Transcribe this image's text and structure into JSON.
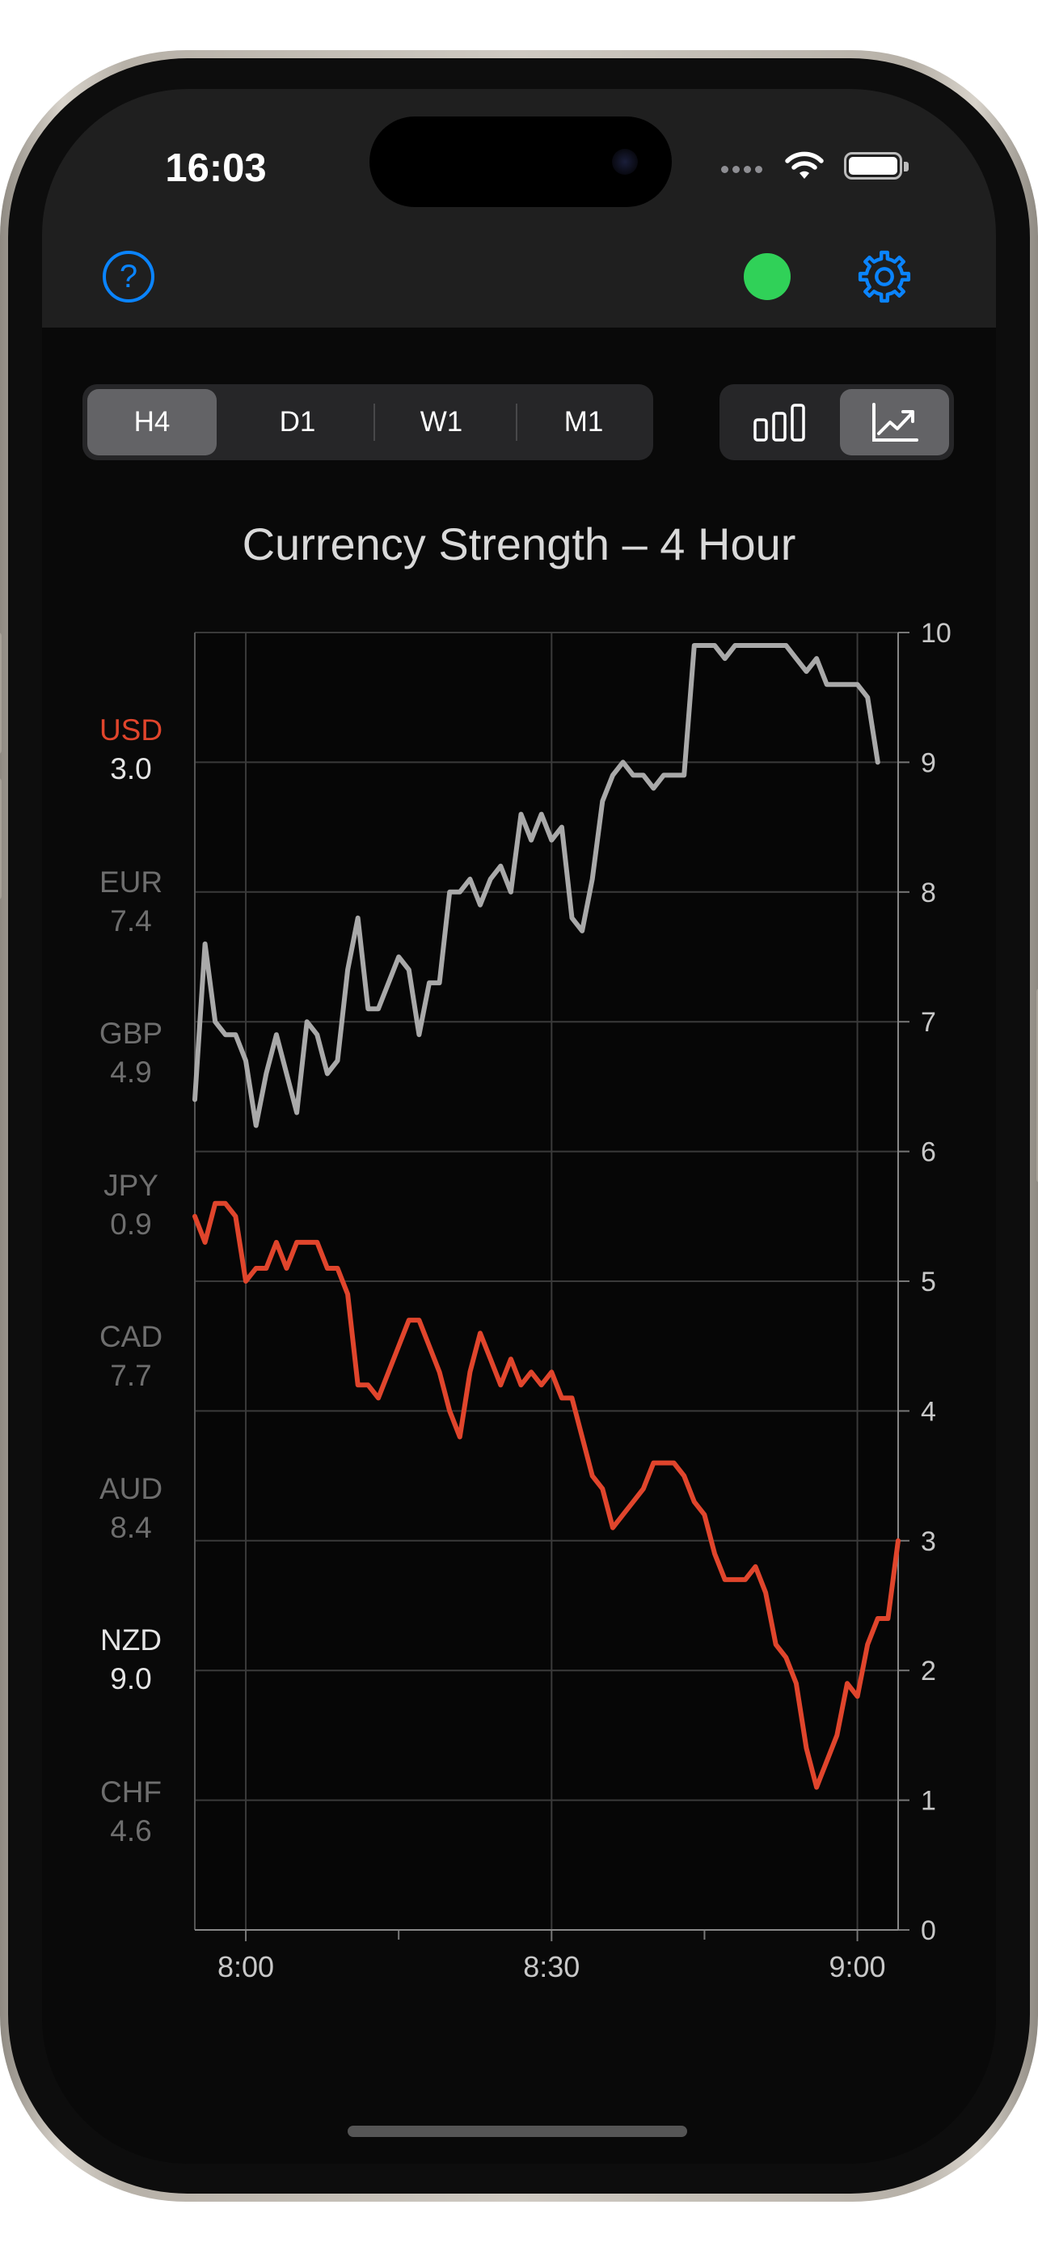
{
  "status_bar": {
    "time": "16:03"
  },
  "header": {
    "help_label": "?"
  },
  "timeframes": {
    "options": [
      "H4",
      "D1",
      "W1",
      "M1"
    ],
    "selected": "H4"
  },
  "view_modes": {
    "options": [
      "bar-chart-icon",
      "line-chart-icon"
    ],
    "selected": "line-chart-icon"
  },
  "colors": {
    "accent": "#0a84ff",
    "connected": "#30d158",
    "highlight": "#e0452c",
    "primary_series": "#a9a9a9"
  },
  "currencies": [
    {
      "code": "USD",
      "value": "3.0",
      "state": "highlight"
    },
    {
      "code": "EUR",
      "value": "7.4",
      "state": "dim"
    },
    {
      "code": "GBP",
      "value": "4.9",
      "state": "dim"
    },
    {
      "code": "JPY",
      "value": "0.9",
      "state": "dim"
    },
    {
      "code": "CAD",
      "value": "7.7",
      "state": "dim"
    },
    {
      "code": "AUD",
      "value": "8.4",
      "state": "dim"
    },
    {
      "code": "NZD",
      "value": "9.0",
      "state": "selected"
    },
    {
      "code": "CHF",
      "value": "4.6",
      "state": "dim"
    }
  ],
  "chart_data": {
    "type": "line",
    "title": "Currency Strength – 4 Hour",
    "y_range": [
      0,
      10
    ],
    "y_ticks": [
      "0",
      "1",
      "2",
      "3",
      "4",
      "5",
      "6",
      "7",
      "8",
      "9",
      "10"
    ],
    "x_ticks": [
      "8:00",
      "8:30",
      "9:00"
    ],
    "x_range_minutes": [
      -5,
      64
    ],
    "grid": true,
    "series": [
      {
        "name": "NZD",
        "color": "#a9a9a9",
        "points": [
          [
            -5,
            6.4
          ],
          [
            -4,
            7.6
          ],
          [
            -3,
            7.0
          ],
          [
            -2,
            6.9
          ],
          [
            -1,
            6.9
          ],
          [
            0,
            6.7
          ],
          [
            1,
            6.2
          ],
          [
            2,
            6.6
          ],
          [
            3,
            6.9
          ],
          [
            4,
            6.6
          ],
          [
            5,
            6.3
          ],
          [
            6,
            7.0
          ],
          [
            7,
            6.9
          ],
          [
            8,
            6.6
          ],
          [
            9,
            6.7
          ],
          [
            10,
            7.4
          ],
          [
            11,
            7.8
          ],
          [
            12,
            7.1
          ],
          [
            13,
            7.1
          ],
          [
            14,
            7.3
          ],
          [
            15,
            7.5
          ],
          [
            16,
            7.4
          ],
          [
            17,
            6.9
          ],
          [
            18,
            7.3
          ],
          [
            19,
            7.3
          ],
          [
            20,
            8.0
          ],
          [
            21,
            8.0
          ],
          [
            22,
            8.1
          ],
          [
            23,
            7.9
          ],
          [
            24,
            8.1
          ],
          [
            25,
            8.2
          ],
          [
            26,
            8.0
          ],
          [
            27,
            8.6
          ],
          [
            28,
            8.4
          ],
          [
            29,
            8.6
          ],
          [
            30,
            8.4
          ],
          [
            31,
            8.5
          ],
          [
            32,
            7.8
          ],
          [
            33,
            7.7
          ],
          [
            34,
            8.1
          ],
          [
            35,
            8.7
          ],
          [
            36,
            8.9
          ],
          [
            37,
            9.0
          ],
          [
            38,
            8.9
          ],
          [
            39,
            8.9
          ],
          [
            40,
            8.8
          ],
          [
            41,
            8.9
          ],
          [
            42,
            8.9
          ],
          [
            43,
            8.9
          ],
          [
            44,
            9.9
          ],
          [
            45,
            9.9
          ],
          [
            46,
            9.9
          ],
          [
            47,
            9.8
          ],
          [
            48,
            9.9
          ],
          [
            49,
            9.9
          ],
          [
            50,
            9.9
          ],
          [
            51,
            9.9
          ],
          [
            52,
            9.9
          ],
          [
            53,
            9.9
          ],
          [
            54,
            9.8
          ],
          [
            55,
            9.7
          ],
          [
            56,
            9.8
          ],
          [
            57,
            9.6
          ],
          [
            58,
            9.6
          ],
          [
            59,
            9.6
          ],
          [
            60,
            9.6
          ],
          [
            61,
            9.5
          ],
          [
            62,
            9.0
          ]
        ]
      },
      {
        "name": "USD",
        "color": "#e0452c",
        "points": [
          [
            -5,
            5.5
          ],
          [
            -4,
            5.3
          ],
          [
            -3,
            5.6
          ],
          [
            -2,
            5.6
          ],
          [
            -1,
            5.5
          ],
          [
            0,
            5.0
          ],
          [
            1,
            5.1
          ],
          [
            2,
            5.1
          ],
          [
            3,
            5.3
          ],
          [
            4,
            5.1
          ],
          [
            5,
            5.3
          ],
          [
            6,
            5.3
          ],
          [
            7,
            5.3
          ],
          [
            8,
            5.1
          ],
          [
            9,
            5.1
          ],
          [
            10,
            4.9
          ],
          [
            11,
            4.2
          ],
          [
            12,
            4.2
          ],
          [
            13,
            4.1
          ],
          [
            14,
            4.3
          ],
          [
            15,
            4.5
          ],
          [
            16,
            4.7
          ],
          [
            17,
            4.7
          ],
          [
            18,
            4.5
          ],
          [
            19,
            4.3
          ],
          [
            20,
            4.0
          ],
          [
            21,
            3.8
          ],
          [
            22,
            4.3
          ],
          [
            23,
            4.6
          ],
          [
            24,
            4.4
          ],
          [
            25,
            4.2
          ],
          [
            26,
            4.4
          ],
          [
            27,
            4.2
          ],
          [
            28,
            4.3
          ],
          [
            29,
            4.2
          ],
          [
            30,
            4.3
          ],
          [
            31,
            4.1
          ],
          [
            32,
            4.1
          ],
          [
            33,
            3.8
          ],
          [
            34,
            3.5
          ],
          [
            35,
            3.4
          ],
          [
            36,
            3.1
          ],
          [
            37,
            3.2
          ],
          [
            38,
            3.3
          ],
          [
            39,
            3.4
          ],
          [
            40,
            3.6
          ],
          [
            41,
            3.6
          ],
          [
            42,
            3.6
          ],
          [
            43,
            3.5
          ],
          [
            44,
            3.3
          ],
          [
            45,
            3.2
          ],
          [
            46,
            2.9
          ],
          [
            47,
            2.7
          ],
          [
            48,
            2.7
          ],
          [
            49,
            2.7
          ],
          [
            50,
            2.8
          ],
          [
            51,
            2.6
          ],
          [
            52,
            2.2
          ],
          [
            53,
            2.1
          ],
          [
            54,
            1.9
          ],
          [
            55,
            1.4
          ],
          [
            56,
            1.1
          ],
          [
            57,
            1.3
          ],
          [
            58,
            1.5
          ],
          [
            59,
            1.9
          ],
          [
            60,
            1.8
          ],
          [
            61,
            2.2
          ],
          [
            62,
            2.4
          ],
          [
            63,
            2.4
          ],
          [
            64,
            3.0
          ]
        ]
      }
    ]
  }
}
